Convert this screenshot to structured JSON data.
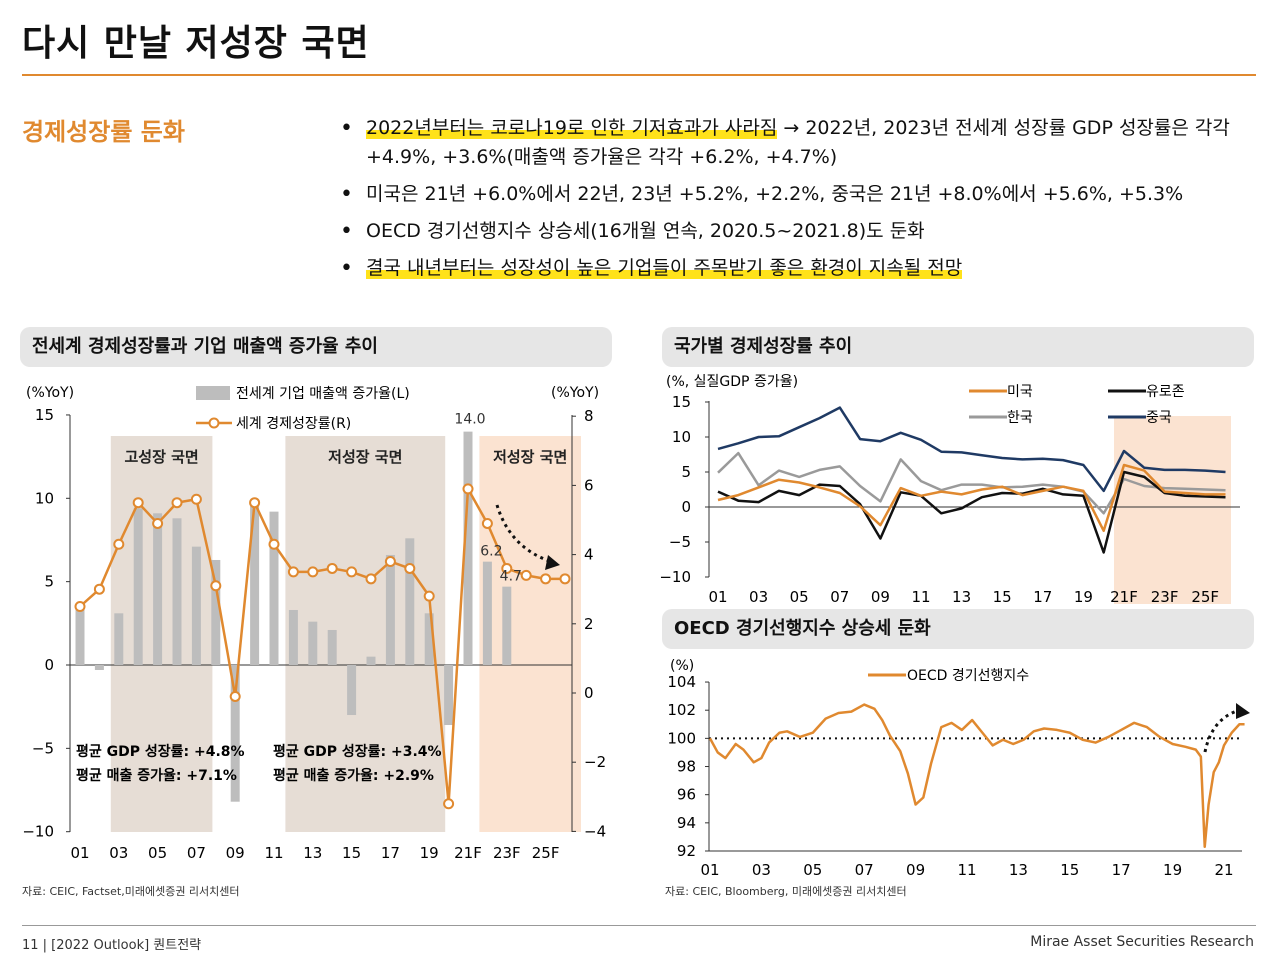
{
  "page": {
    "title": "다시 만날 저성장 국면",
    "section_label": "경제성장률 둔화",
    "bullets": [
      {
        "hl": "2022년부터는 코로나19로 인한 기저효과가 사라짐",
        "rest": " → 2022년, 2023년 전세계 성장률 GDP 성장률은 각각 +4.9%, +3.6%(매출액 증가율은 각각 +6.2%, +4.7%)"
      },
      {
        "hl": "",
        "rest": "미국은 21년 +6.0%에서 22년, 23년 +5.2%, +2.2%, 중국은 21년 +8.0%에서 +5.6%, +5.3%"
      },
      {
        "hl": "",
        "rest": "OECD 경기선행지수 상승세(16개월 연속, 2020.5~2021.8)도 둔화"
      },
      {
        "hl": "결국 내년부터는 성장성이 높은 기업들이 주목받기 좋은 환경이 지속될 전망",
        "rest": ""
      }
    ],
    "footer_left": "11 | [2022 Outlook] 퀀트전략",
    "footer_right": "Mirae Asset Securities Research",
    "colors": {
      "accent": "#e0892f",
      "highlight": "#ffe21a",
      "bar": "#bdbdbd",
      "shade_brown": "#e6ddd5",
      "shade_orange": "#fbe3d1",
      "navy": "#1f3a64",
      "gray_line": "#9a9a9a",
      "black": "#111111"
    }
  },
  "chart_data": [
    {
      "panel_title": "전세계 경제성장률과 기업 매출액 증가율 추이",
      "type": "bar+line",
      "left_unit": "(%YoY)",
      "right_unit": "(%YoY)",
      "x": [
        "01",
        "02",
        "03",
        "04",
        "05",
        "06",
        "07",
        "08",
        "09",
        "10",
        "11",
        "12",
        "13",
        "14",
        "15",
        "16",
        "17",
        "18",
        "19",
        "20",
        "21F",
        "22F",
        "23F",
        "24F",
        "25F",
        "26F"
      ],
      "x_ticks": [
        "01",
        "03",
        "05",
        "07",
        "09",
        "11",
        "13",
        "15",
        "17",
        "19",
        "21F",
        "23F",
        "25F"
      ],
      "ylim_left": [
        -10,
        15
      ],
      "yticks_left": [
        15,
        10,
        5,
        0,
        -5,
        -10
      ],
      "ylim_right": [
        -4,
        8
      ],
      "yticks_right": [
        8,
        6,
        4,
        2,
        0,
        -2,
        -4
      ],
      "bar_series": {
        "name": "전세계 기업 매출액 증가율(L)",
        "values": [
          3.5,
          -0.3,
          3.1,
          9.4,
          9.1,
          8.8,
          7.1,
          6.3,
          -8.2,
          9.7,
          9.2,
          3.3,
          2.6,
          2.1,
          -3.0,
          0.5,
          6.6,
          7.6,
          3.1,
          -3.6,
          14.0,
          6.2,
          4.7,
          null,
          null,
          null
        ]
      },
      "line_series": {
        "name": "세계 경제성장률(R)",
        "values": [
          2.5,
          3.0,
          4.3,
          5.5,
          4.9,
          5.5,
          5.6,
          3.1,
          -0.1,
          5.5,
          4.3,
          3.5,
          3.5,
          3.6,
          3.5,
          3.3,
          3.8,
          3.6,
          2.8,
          -3.2,
          5.9,
          4.9,
          3.6,
          3.4,
          3.3,
          3.3
        ]
      },
      "phases": [
        {
          "label": "고성장 국면",
          "start": "03",
          "end": "07"
        },
        {
          "label": "저성장 국면",
          "start": "12",
          "end": "19"
        },
        {
          "label": "저성장 국면",
          "start": "22F",
          "end": "26F"
        }
      ],
      "data_labels": [
        "14.0",
        "6.2",
        "4.7"
      ],
      "annotations": [
        {
          "l1": "평균 GDP 성장률: +4.8%",
          "l2": "평균 매출 증가율: +7.1%"
        },
        {
          "l1": "평균 GDP 성장률: +3.4%",
          "l2": "평균 매출 증가율: +2.9%"
        }
      ],
      "source": "자료: CEIC, Factset,미래에셋증권 리서치센터"
    },
    {
      "panel_title": "국가별 경제성장률 추이",
      "type": "line",
      "unit": "(%, 실질GDP 증가율)",
      "x": [
        "01",
        "02",
        "03",
        "04",
        "05",
        "06",
        "07",
        "08",
        "09",
        "10",
        "11",
        "12",
        "13",
        "14",
        "15",
        "16",
        "17",
        "18",
        "19",
        "20",
        "21F",
        "22F",
        "23F",
        "24F",
        "25F",
        "26F"
      ],
      "x_ticks": [
        "01",
        "03",
        "05",
        "07",
        "09",
        "11",
        "13",
        "15",
        "17",
        "19",
        "21F",
        "23F",
        "25F"
      ],
      "ylim": [
        -10,
        15
      ],
      "yticks": [
        15,
        10,
        5,
        0,
        -5,
        -10
      ],
      "forecast_shade": {
        "start": "21F",
        "end": "26F"
      },
      "series": [
        {
          "name": "미국",
          "color": "#e0892f",
          "values": [
            1.0,
            1.7,
            2.8,
            3.9,
            3.5,
            2.8,
            2.0,
            0.1,
            -2.6,
            2.7,
            1.6,
            2.2,
            1.8,
            2.5,
            2.9,
            1.7,
            2.3,
            2.9,
            2.3,
            -3.4,
            6.0,
            5.2,
            2.2,
            2.0,
            1.8,
            1.8
          ]
        },
        {
          "name": "유로존",
          "color": "#111111",
          "values": [
            2.2,
            0.9,
            0.7,
            2.3,
            1.7,
            3.2,
            3.0,
            0.4,
            -4.5,
            2.1,
            1.6,
            -0.9,
            -0.2,
            1.4,
            2.0,
            1.9,
            2.6,
            1.8,
            1.6,
            -6.5,
            5.0,
            4.3,
            2.0,
            1.6,
            1.5,
            1.4
          ]
        },
        {
          "name": "한국",
          "color": "#9a9a9a",
          "values": [
            4.9,
            7.7,
            3.1,
            5.2,
            4.3,
            5.3,
            5.8,
            3.0,
            0.8,
            6.8,
            3.7,
            2.4,
            3.2,
            3.2,
            2.8,
            2.9,
            3.2,
            2.9,
            2.2,
            -0.9,
            4.0,
            3.0,
            2.7,
            2.6,
            2.5,
            2.4
          ]
        },
        {
          "name": "중국",
          "color": "#1f3a64",
          "values": [
            8.3,
            9.1,
            10.0,
            10.1,
            11.4,
            12.7,
            14.2,
            9.7,
            9.4,
            10.6,
            9.6,
            7.9,
            7.8,
            7.4,
            7.0,
            6.8,
            6.9,
            6.7,
            6.0,
            2.3,
            8.0,
            5.6,
            5.3,
            5.3,
            5.2,
            5.0
          ]
        }
      ]
    },
    {
      "panel_title": "OECD 경기선행지수 상승세 둔화",
      "type": "line",
      "unit": "(%)",
      "ylim": [
        92,
        104
      ],
      "yticks": [
        104,
        102,
        100,
        98,
        96,
        94,
        92
      ],
      "x_ticks": [
        "01",
        "03",
        "05",
        "07",
        "09",
        "11",
        "13",
        "15",
        "17",
        "19",
        "21"
      ],
      "x_range": [
        2001,
        2021.8
      ],
      "reference_line": 100,
      "series": [
        {
          "name": "OECD 경기선행지수",
          "color": "#e0892f",
          "x": [
            2001.0,
            2001.3,
            2001.6,
            2002.0,
            2002.3,
            2002.7,
            2003.0,
            2003.3,
            2003.7,
            2004.0,
            2004.5,
            2005.0,
            2005.5,
            2006.0,
            2006.5,
            2007.0,
            2007.4,
            2007.7,
            2008.0,
            2008.4,
            2008.7,
            2009.0,
            2009.3,
            2009.6,
            2010.0,
            2010.4,
            2010.8,
            2011.2,
            2011.6,
            2012.0,
            2012.4,
            2012.8,
            2013.2,
            2013.6,
            2014.0,
            2014.5,
            2015.0,
            2015.5,
            2016.0,
            2016.5,
            2017.0,
            2017.5,
            2018.0,
            2018.5,
            2019.0,
            2019.5,
            2019.9,
            2020.1,
            2020.25,
            2020.4,
            2020.6,
            2020.8,
            2021.0,
            2021.3,
            2021.6,
            2021.8
          ],
          "values": [
            100.0,
            99.0,
            98.6,
            99.6,
            99.2,
            98.3,
            98.6,
            99.7,
            100.4,
            100.5,
            100.1,
            100.4,
            101.4,
            101.8,
            101.9,
            102.4,
            102.1,
            101.3,
            100.2,
            99.1,
            97.5,
            95.3,
            95.8,
            98.2,
            100.8,
            101.1,
            100.6,
            101.3,
            100.4,
            99.5,
            99.9,
            99.6,
            99.9,
            100.5,
            100.7,
            100.6,
            100.4,
            99.9,
            99.7,
            100.1,
            100.6,
            101.1,
            100.8,
            100.1,
            99.6,
            99.4,
            99.2,
            98.7,
            92.3,
            95.3,
            97.6,
            98.3,
            99.5,
            100.4,
            101.0,
            101.0
          ]
        }
      ],
      "source": "자료: CEIC, Bloomberg, 미래에셋증권 리서치센터"
    }
  ]
}
